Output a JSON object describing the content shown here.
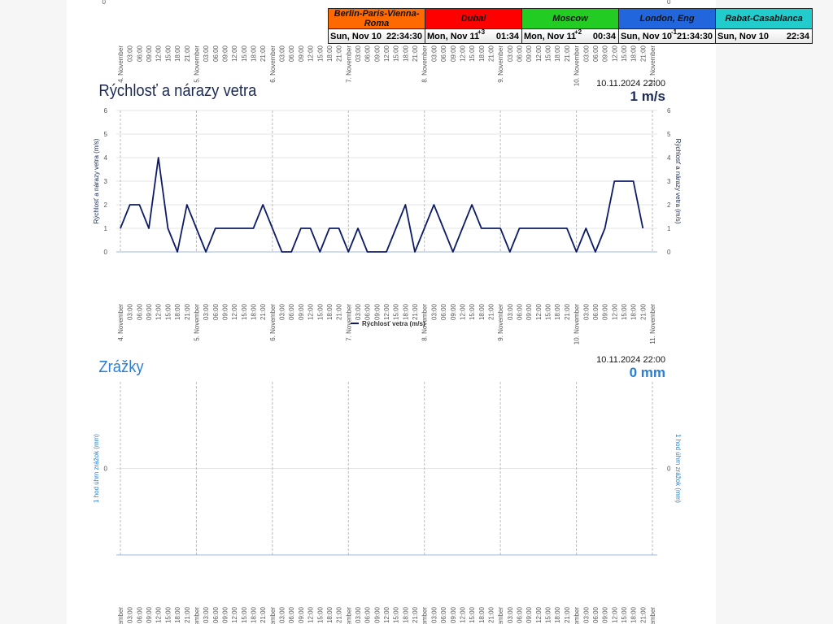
{
  "clocks": [
    {
      "city": "Berlin-Paris-Vienna-Roma",
      "color": "#ff6a00",
      "date": "Sun, Nov 10",
      "offset": null,
      "time": "22:34:30"
    },
    {
      "city": "Dubai",
      "color": "#ff0000",
      "date": "Mon, Nov 11",
      "offset": "+3",
      "time": "01:34"
    },
    {
      "city": "Moscow",
      "color": "#22cc22",
      "date": "Mon, Nov 11",
      "offset": "+2",
      "time": "00:34"
    },
    {
      "city": "London, Eng",
      "color": "#2266dd",
      "date": "Sun, Nov 10",
      "offset": "-1",
      "time": "21:34:30"
    },
    {
      "city": "Rabat-Casablanca",
      "color": "#22cccc",
      "date": "Sun, Nov 10",
      "offset": null,
      "time": "22:34"
    }
  ],
  "chart_data": [
    {
      "type": "line",
      "title": "Rýchlosť a nárazy vetra",
      "timestamp": "10.11.2024 22:00",
      "current": "1 m/s",
      "y_label": "Rýchlosť a nárazy vetra (m/s)",
      "categories": [
        "4. November",
        "03:00",
        "06:00",
        "09:00",
        "12:00",
        "15:00",
        "18:00",
        "21:00",
        "5. November",
        "03:00",
        "06:00",
        "09:00",
        "12:00",
        "15:00",
        "18:00",
        "21:00",
        "6. November",
        "03:00",
        "06:00",
        "09:00",
        "12:00",
        "15:00",
        "18:00",
        "21:00",
        "7. November",
        "03:00",
        "06:00",
        "09:00",
        "12:00",
        "15:00",
        "18:00",
        "21:00",
        "8. November",
        "03:00",
        "06:00",
        "09:00",
        "12:00",
        "15:00",
        "18:00",
        "21:00",
        "9. November",
        "03:00",
        "06:00",
        "09:00",
        "12:00",
        "15:00",
        "18:00",
        "21:00",
        "10. November",
        "03:00",
        "06:00",
        "09:00",
        "12:00",
        "15:00",
        "18:00",
        "21:00",
        "11. November"
      ],
      "series": [
        {
          "name": "Rýchlosť vetra (m/s)",
          "color": "#0d1b66",
          "values": [
            1,
            2,
            2,
            1,
            4,
            1,
            0,
            2,
            1,
            0,
            1,
            1,
            1,
            1,
            1,
            2,
            1,
            0,
            0,
            1,
            1,
            0,
            1,
            1,
            0,
            1,
            0,
            0,
            0,
            1,
            2,
            0,
            1,
            2,
            1,
            0,
            1,
            2,
            1,
            1,
            1,
            0,
            1,
            1,
            1,
            1,
            1,
            1,
            0,
            1,
            0,
            1,
            3,
            3,
            3,
            1,
            null
          ]
        }
      ],
      "ylim": [
        0,
        6
      ],
      "yticks": [
        0,
        1,
        2,
        3,
        4,
        5,
        6
      ],
      "grid": true
    },
    {
      "type": "line",
      "title": "Zrážky",
      "timestamp": "10.11.2024 22:00",
      "current": "0 mm",
      "y_label": "1 hod úhrn zrážok (mm)",
      "title_color": "#2a7fd4",
      "ylim": [
        -1,
        1
      ],
      "yticks": [
        0
      ],
      "grid": true
    }
  ]
}
